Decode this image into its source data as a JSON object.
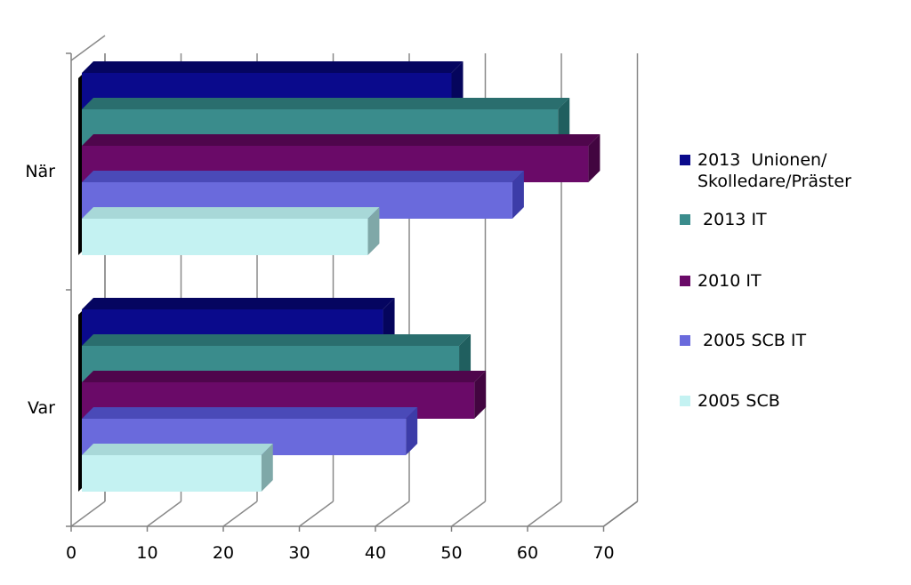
{
  "chart_data": {
    "type": "bar",
    "orientation": "horizontal",
    "style": "3d",
    "categories": [
      "När",
      "Var"
    ],
    "series": [
      {
        "name": "2013  Unionen/\nSkolledare/Präster",
        "values": [
          50,
          41
        ],
        "color": "#0a0a8c",
        "side": "#05055c",
        "top": "#050560"
      },
      {
        "name": " 2013 IT",
        "values": [
          64,
          51
        ],
        "color": "#3a8c8c",
        "side": "#205f5f",
        "top": "#2a6e6e"
      },
      {
        "name": "2010 IT",
        "values": [
          68,
          53
        ],
        "color": "#6a0a68",
        "side": "#420540",
        "top": "#4f064c"
      },
      {
        "name": " 2005 SCB IT",
        "values": [
          58,
          44
        ],
        "color": "#6a6adc",
        "side": "#3c3ca8",
        "top": "#4a4ab8"
      },
      {
        "name": "2005 SCB",
        "values": [
          39,
          25
        ],
        "color": "#c4f2f2",
        "side": "#7fa8a8",
        "top": "#a8d8d8"
      }
    ],
    "xlim": [
      0,
      70
    ],
    "xticks": [
      0,
      10,
      20,
      30,
      40,
      50,
      60,
      70
    ],
    "grid": true,
    "legend": "right",
    "title": "",
    "xlabel": "",
    "ylabel": ""
  }
}
